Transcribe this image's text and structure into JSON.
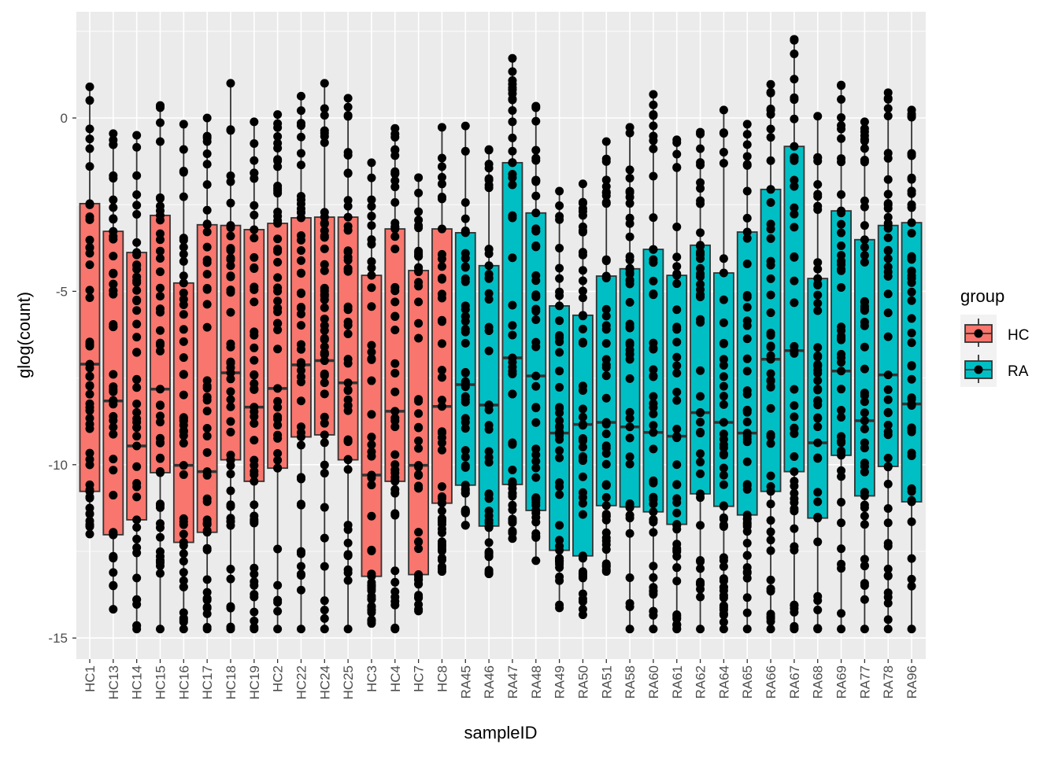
{
  "chart_data": {
    "type": "boxplot",
    "title": "",
    "xlabel": "sampleID",
    "ylabel": "glog(count)",
    "ylim": [
      -15.5,
      2.4
    ],
    "yticks": [
      0,
      -5,
      -10,
      -15
    ],
    "ytick_labels": [
      "0",
      "-5",
      "-10",
      "-15"
    ],
    "grid": true,
    "legend": {
      "title": "group",
      "placement": "right",
      "entries": [
        "HC",
        "RA"
      ]
    },
    "colors": {
      "HC": "#F8766D",
      "RA": "#00BFC4",
      "panel": "#EBEBEB",
      "point": "#000000"
    },
    "boxes": [
      {
        "sample": "HC1",
        "group": "HC",
        "whisker_high": 0.9,
        "q3": -2.47,
        "median": -7.1,
        "q1": -10.77,
        "whisker_low": -12.0
      },
      {
        "sample": "HC13",
        "group": "HC",
        "whisker_high": -0.45,
        "q3": -3.27,
        "median": -8.16,
        "q1": -12.02,
        "whisker_low": -14.17
      },
      {
        "sample": "HC14",
        "group": "HC",
        "whisker_high": -0.5,
        "q3": -3.88,
        "median": -9.46,
        "q1": -11.59,
        "whisker_low": -14.74
      },
      {
        "sample": "HC15",
        "group": "HC",
        "whisker_high": 0.36,
        "q3": -2.81,
        "median": -7.82,
        "q1": -10.23,
        "whisker_low": -14.74
      },
      {
        "sample": "HC16",
        "group": "HC",
        "whisker_high": -0.18,
        "q3": -4.76,
        "median": -10.02,
        "q1": -12.24,
        "whisker_low": -14.74
      },
      {
        "sample": "HC17",
        "group": "HC",
        "whisker_high": 0.0,
        "q3": -3.08,
        "median": -10.2,
        "q1": -11.95,
        "whisker_low": -14.74
      },
      {
        "sample": "HC18",
        "group": "HC",
        "whisker_high": 1.0,
        "q3": -3.1,
        "median": -7.35,
        "q1": -9.86,
        "whisker_low": -14.74
      },
      {
        "sample": "HC19",
        "group": "HC",
        "whisker_high": -0.11,
        "q3": -3.22,
        "median": -8.34,
        "q1": -10.48,
        "whisker_low": -14.74
      },
      {
        "sample": "HC2",
        "group": "HC",
        "whisker_high": 0.1,
        "q3": -3.04,
        "median": -7.8,
        "q1": -10.1,
        "whisker_low": -14.74
      },
      {
        "sample": "HC22",
        "group": "HC",
        "whisker_high": 0.63,
        "q3": -2.88,
        "median": -7.12,
        "q1": -9.2,
        "whisker_low": -14.74
      },
      {
        "sample": "HC24",
        "group": "HC",
        "whisker_high": 1.0,
        "q3": -2.86,
        "median": -7.0,
        "q1": -9.14,
        "whisker_low": -14.74
      },
      {
        "sample": "HC25",
        "group": "HC",
        "whisker_high": 0.57,
        "q3": -2.86,
        "median": -7.64,
        "q1": -9.86,
        "whisker_low": -14.74
      },
      {
        "sample": "HC3",
        "group": "HC",
        "whisker_high": -1.29,
        "q3": -4.54,
        "median": -10.3,
        "q1": -13.22,
        "whisker_low": -14.58
      },
      {
        "sample": "HC4",
        "group": "HC",
        "whisker_high": -0.3,
        "q3": -3.2,
        "median": -8.46,
        "q1": -10.48,
        "whisker_low": -14.74
      },
      {
        "sample": "HC7",
        "group": "HC",
        "whisker_high": -1.72,
        "q3": -4.4,
        "median": -10.02,
        "q1": -13.17,
        "whisker_low": -14.22
      },
      {
        "sample": "HC8",
        "group": "HC",
        "whisker_high": -0.27,
        "q3": -3.2,
        "median": -8.32,
        "q1": -11.11,
        "whisker_low": -13.08
      },
      {
        "sample": "RA45",
        "group": "RA",
        "whisker_high": -0.23,
        "q3": -3.31,
        "median": -7.69,
        "q1": -10.59,
        "whisker_low": -11.75
      },
      {
        "sample": "RA46",
        "group": "RA",
        "whisker_high": -0.91,
        "q3": -4.26,
        "median": -8.28,
        "q1": -11.77,
        "whisker_low": -13.15
      },
      {
        "sample": "RA47",
        "group": "RA",
        "whisker_high": 1.72,
        "q3": -1.29,
        "median": -6.92,
        "q1": -10.57,
        "whisker_low": -12.13
      },
      {
        "sample": "RA48",
        "group": "RA",
        "whisker_high": 0.34,
        "q3": -2.74,
        "median": -7.44,
        "q1": -11.32,
        "whisker_low": -12.77
      },
      {
        "sample": "RA49",
        "group": "RA",
        "whisker_high": -2.11,
        "q3": -5.42,
        "median": -9.09,
        "q1": -12.47,
        "whisker_low": -14.13
      },
      {
        "sample": "RA50",
        "group": "RA",
        "whisker_high": -1.9,
        "q3": -5.69,
        "median": -8.84,
        "q1": -12.63,
        "whisker_low": -14.33
      },
      {
        "sample": "RA51",
        "group": "RA",
        "whisker_high": -0.68,
        "q3": -4.56,
        "median": -8.78,
        "q1": -11.18,
        "whisker_low": -13.08
      },
      {
        "sample": "RA58",
        "group": "RA",
        "whisker_high": -0.27,
        "q3": -4.35,
        "median": -8.91,
        "q1": -11.22,
        "whisker_low": -14.74
      },
      {
        "sample": "RA60",
        "group": "RA",
        "whisker_high": 0.68,
        "q3": -3.79,
        "median": -9.07,
        "q1": -11.36,
        "whisker_low": -14.74
      },
      {
        "sample": "RA61",
        "group": "RA",
        "whisker_high": -0.63,
        "q3": -4.54,
        "median": -9.18,
        "q1": -11.72,
        "whisker_low": -14.74
      },
      {
        "sample": "RA62",
        "group": "RA",
        "whisker_high": -0.41,
        "q3": -3.67,
        "median": -8.5,
        "q1": -10.84,
        "whisker_low": -14.74
      },
      {
        "sample": "RA64",
        "group": "RA",
        "whisker_high": 0.23,
        "q3": -4.47,
        "median": -8.78,
        "q1": -11.2,
        "whisker_low": -14.74
      },
      {
        "sample": "RA65",
        "group": "RA",
        "whisker_high": -0.18,
        "q3": -3.29,
        "median": -9.09,
        "q1": -11.45,
        "whisker_low": -14.74
      },
      {
        "sample": "RA66",
        "group": "RA",
        "whisker_high": 0.97,
        "q3": -2.06,
        "median": -6.96,
        "q1": -10.77,
        "whisker_low": -14.74
      },
      {
        "sample": "RA67",
        "group": "RA",
        "whisker_high": 2.27,
        "q3": -0.82,
        "median": -6.71,
        "q1": -10.2,
        "whisker_low": -14.74
      },
      {
        "sample": "RA68",
        "group": "RA",
        "whisker_high": 0.05,
        "q3": -4.63,
        "median": -9.37,
        "q1": -11.54,
        "whisker_low": -14.74
      },
      {
        "sample": "RA69",
        "group": "RA",
        "whisker_high": 0.95,
        "q3": -2.68,
        "median": -7.3,
        "q1": -9.73,
        "whisker_low": -14.74
      },
      {
        "sample": "RA77",
        "group": "RA",
        "whisker_high": -0.11,
        "q3": -3.51,
        "median": -8.73,
        "q1": -10.9,
        "whisker_low": -14.74
      },
      {
        "sample": "RA78",
        "group": "RA",
        "whisker_high": 0.73,
        "q3": -3.1,
        "median": -7.41,
        "q1": -10.05,
        "whisker_low": -14.74
      },
      {
        "sample": "RA96",
        "group": "RA",
        "whisker_high": 0.23,
        "q3": -3.02,
        "median": -8.25,
        "q1": -11.07,
        "whisker_low": -14.74
      }
    ]
  }
}
